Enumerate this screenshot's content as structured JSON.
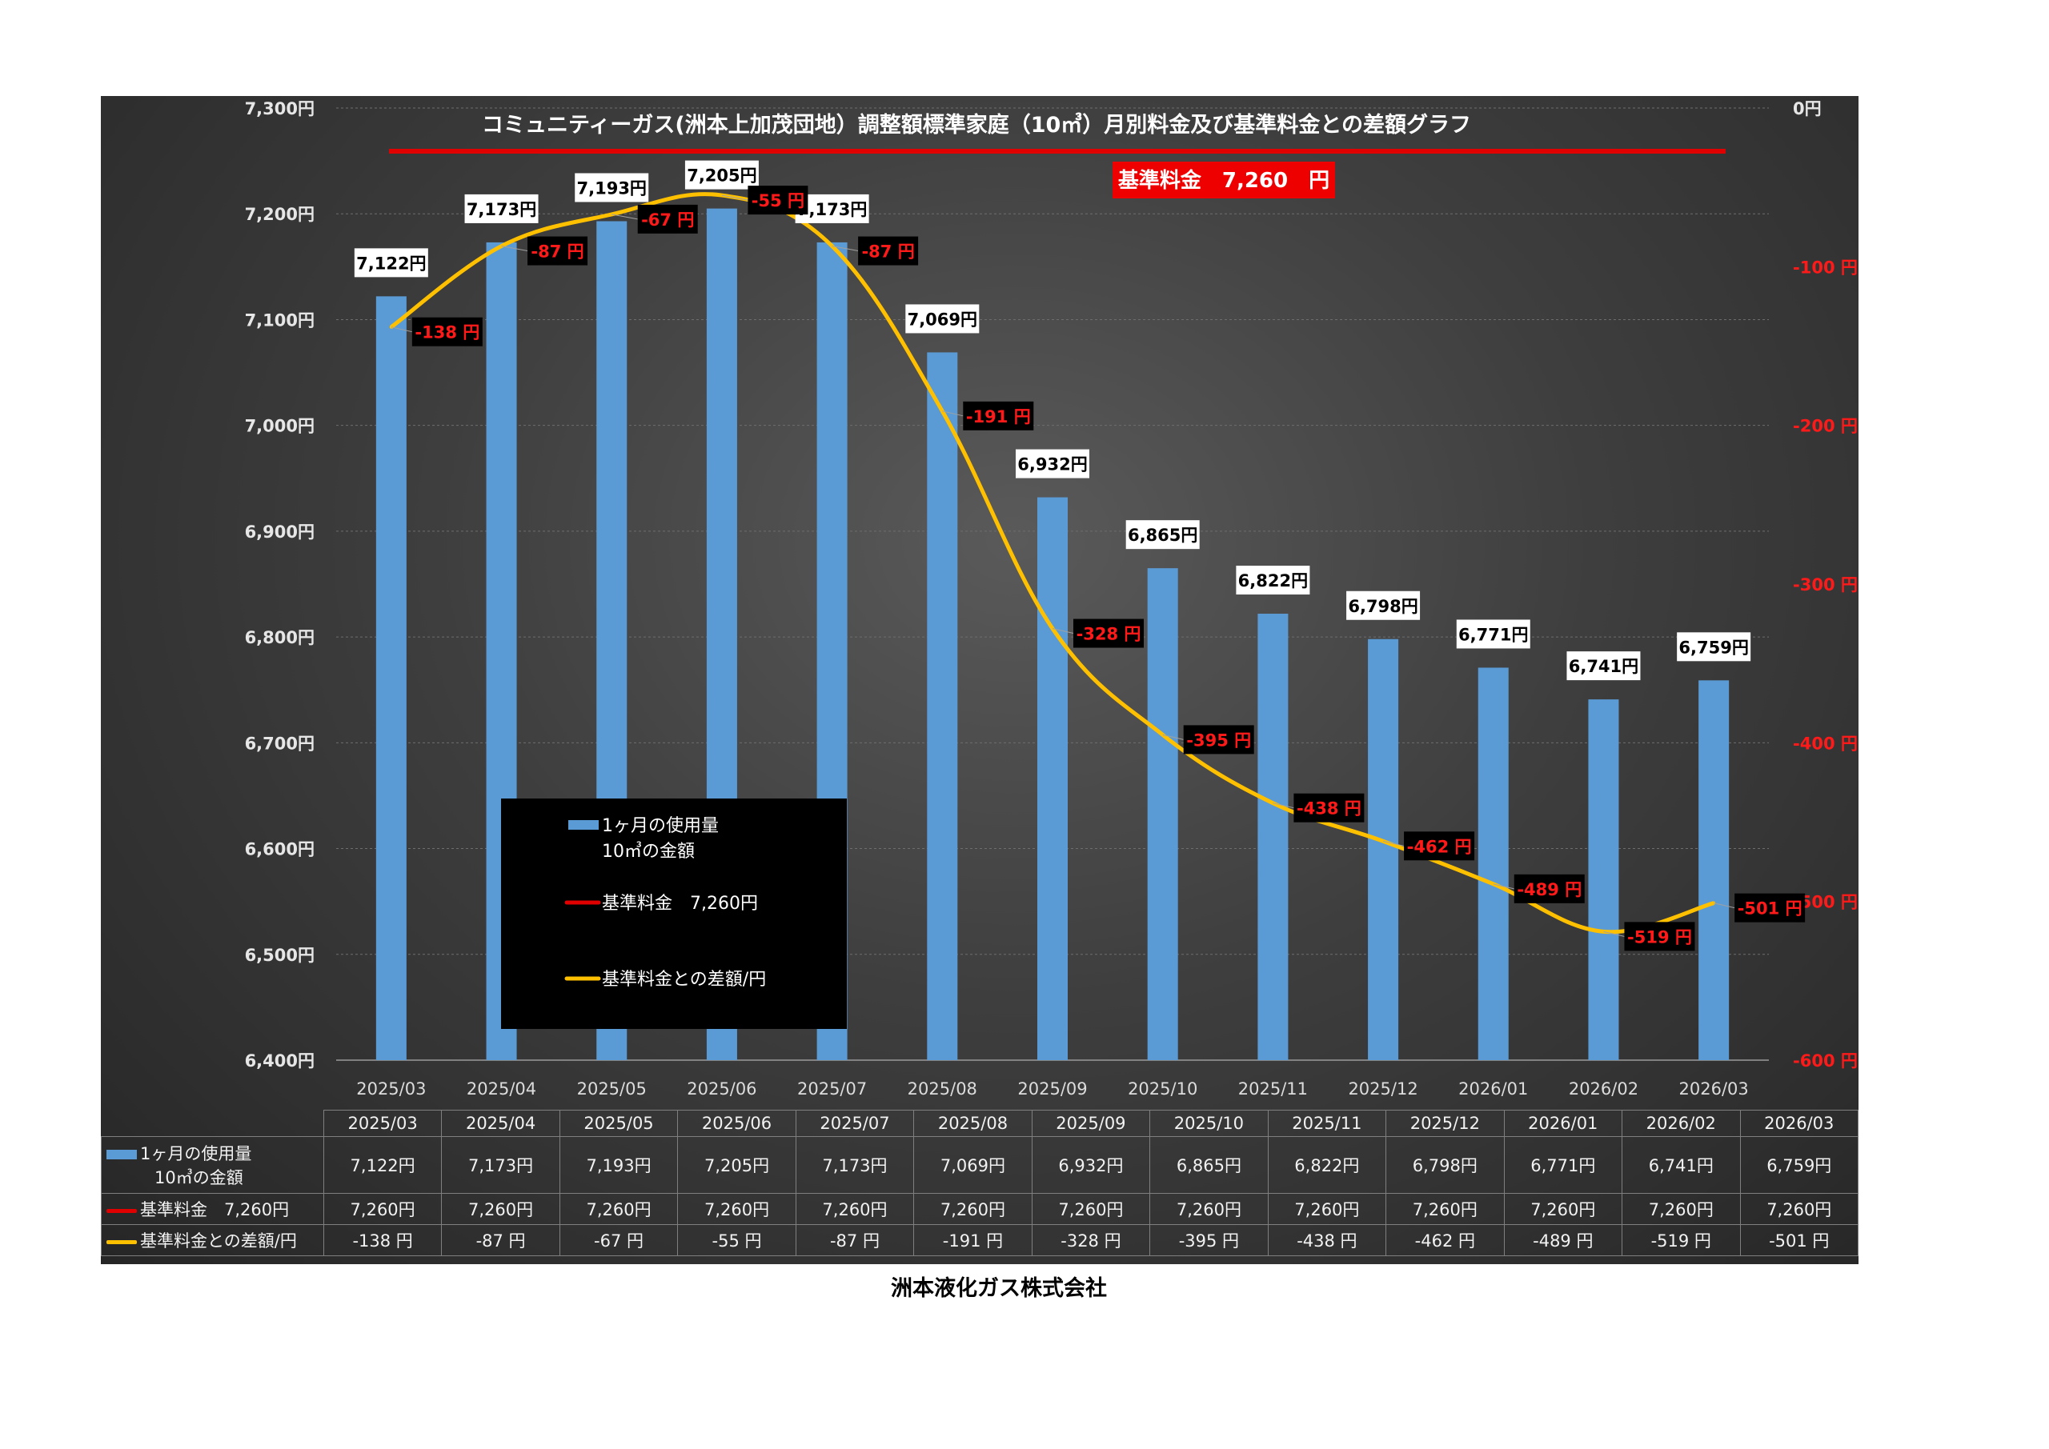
{
  "chart_data": {
    "type": "bar",
    "title": "コミュニティーガス(洲本上加茂団地）調整額標準家庭（10㎥）月別料金及び基準料金との差額グラフ",
    "badge": "基準料金　7,260　円",
    "categories": [
      "2025/03",
      "2025/04",
      "2025/05",
      "2025/06",
      "2025/07",
      "2025/08",
      "2025/09",
      "2025/10",
      "2025/11",
      "2025/12",
      "2026/01",
      "2026/02",
      "2026/03"
    ],
    "y_left": {
      "min": 6400,
      "max": 7300,
      "step": 100,
      "ticks": [
        "7,300円",
        "7,200円",
        "7,100円",
        "7,000円",
        "6,900円",
        "6,800円",
        "6,700円",
        "6,600円",
        "6,500円",
        "6,400円"
      ]
    },
    "y_right": {
      "min": -600,
      "max": 0,
      "step": 100,
      "ticks": [
        "0円",
        "-100 円",
        "-200 円",
        "-300 円",
        "-400 円",
        "-500 円",
        "-600 円"
      ]
    },
    "series": [
      {
        "name": "1ヶ月の使用量　10㎥の金額",
        "type": "bar",
        "axis": "left",
        "values": [
          7122,
          7173,
          7193,
          7205,
          7173,
          7069,
          6932,
          6865,
          6822,
          6798,
          6771,
          6741,
          6759
        ],
        "labels": [
          "7,122円",
          "7,173円",
          "7,193円",
          "7,205円",
          "7,173円",
          "7,069円",
          "6,932円",
          "6,865円",
          "6,822円",
          "6,798円",
          "6,771円",
          "6,741円",
          "6,759円"
        ]
      },
      {
        "name": "基準料金　7,260円",
        "type": "line",
        "axis": "left",
        "values": [
          7260,
          7260,
          7260,
          7260,
          7260,
          7260,
          7260,
          7260,
          7260,
          7260,
          7260,
          7260,
          7260
        ],
        "labels": [
          "7,260円",
          "7,260円",
          "7,260円",
          "7,260円",
          "7,260円",
          "7,260円",
          "7,260円",
          "7,260円",
          "7,260円",
          "7,260円",
          "7,260円",
          "7,260円",
          "7,260円"
        ]
      },
      {
        "name": "基準料金との差額/円",
        "type": "line",
        "axis": "right",
        "values": [
          -138,
          -87,
          -67,
          -55,
          -87,
          -191,
          -328,
          -395,
          -438,
          -462,
          -489,
          -519,
          -501
        ],
        "labels": [
          "-138 円",
          "-87 円",
          "-67 円",
          "-55 円",
          "-87 円",
          "-191 円",
          "-328 円",
          "-395 円",
          "-438 円",
          "-462 円",
          "-489 円",
          "-519 円",
          "-501 円"
        ]
      }
    ],
    "legend": {
      "items": [
        "1ヶ月の使用量",
        "10㎥の金額",
        "基準料金　7,260円",
        "基準料金との差額/円"
      ]
    },
    "table": {
      "row_labels": [
        "1ヶ月の使用量",
        "10㎥の金額",
        "基準料金　7,260円",
        "基準料金との差額/円"
      ]
    },
    "colors": {
      "bar": "#5b9bd5",
      "reference_line": "#e00000",
      "difference_line": "#ffc000",
      "right_axis_text": "#ff1a1a"
    }
  },
  "footer": {
    "company": "洲本液化ガス株式会社"
  }
}
